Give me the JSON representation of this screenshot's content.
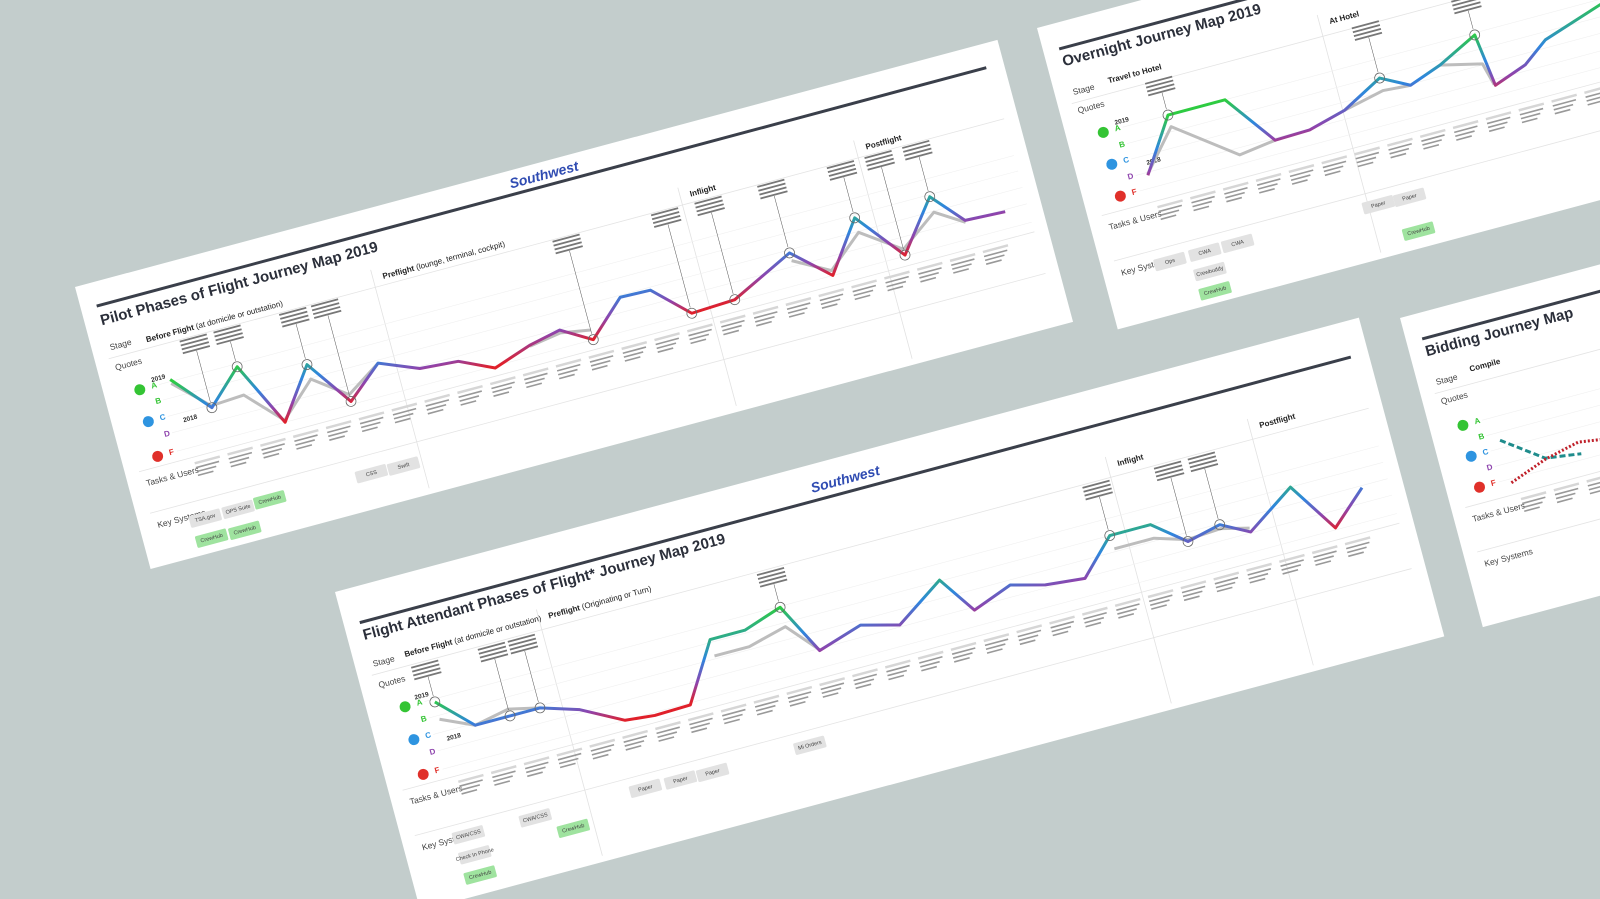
{
  "brand": "Southwest",
  "maps": [
    {
      "title": "Pilot Phases of Flight Journey Map 2019",
      "stages": [
        {
          "name": "Before Flight",
          "note": "(at domicile or outstation)"
        },
        {
          "name": "Preflight",
          "note": "(lounge, terminal, cockpit)"
        },
        {
          "name": "Inflight"
        },
        {
          "name": "Postflight"
        }
      ],
      "rows": [
        "Stage",
        "Quotes",
        "Tasks & Users",
        "Key Systems"
      ],
      "grades": [
        "A",
        "B",
        "C",
        "D",
        "F"
      ],
      "years": [
        "2019",
        "2018"
      ],
      "systems": [
        {
          "name": "TSA.gov",
          "color": "#e2e2e2"
        },
        {
          "name": "OPS Suite",
          "color": "#e2e2e2"
        },
        {
          "name": "CrewHub",
          "color": "#9fe39f"
        },
        {
          "name": "CrewHub",
          "color": "#9fe39f"
        },
        {
          "name": "CrewHub",
          "color": "#9fe39f"
        },
        {
          "name": "CSS",
          "color": "#e2e2e2"
        },
        {
          "name": "Swift",
          "color": "#e2e2e2"
        }
      ]
    },
    {
      "title": "Flight Attendant Phases of Flight* Journey Map 2019",
      "stages": [
        {
          "name": "Before Flight",
          "note": "(at domicile or outstation)"
        },
        {
          "name": "Preflight",
          "note": "(Originating or Turn)"
        },
        {
          "name": "Inflight"
        },
        {
          "name": "Postflight"
        }
      ],
      "rows": [
        "Stage",
        "Quotes",
        "Tasks & Users",
        "Key Systems"
      ],
      "grades": [
        "A",
        "B",
        "C",
        "D",
        "F"
      ],
      "years": [
        "2019",
        "2018"
      ],
      "systems": [
        {
          "name": "CWA/CSS",
          "color": "#e2e2e2"
        },
        {
          "name": "Check In Phone",
          "color": "#e2e2e2"
        },
        {
          "name": "CrewHub",
          "color": "#9fe39f"
        },
        {
          "name": "CWA/CSS",
          "color": "#e2e2e2"
        },
        {
          "name": "CrewHub",
          "color": "#9fe39f"
        },
        {
          "name": "Paper",
          "color": "#e2e2e2"
        },
        {
          "name": "Paper",
          "color": "#e2e2e2"
        },
        {
          "name": "Paper",
          "color": "#e2e2e2"
        },
        {
          "name": "Mi Orders",
          "color": "#e2e2e2"
        }
      ]
    },
    {
      "title": "Overnight Journey Map 2019",
      "stages": [
        {
          "name": "Travel to Hotel"
        },
        {
          "name": "At Hotel"
        }
      ],
      "rows": [
        "Stage",
        "Quotes",
        "Tasks & Users",
        "Key Systems"
      ],
      "grades": [
        "A",
        "B",
        "C",
        "D",
        "F"
      ],
      "years": [
        "2019",
        "2018"
      ],
      "systems": [
        {
          "name": "Ops",
          "color": "#e2e2e2"
        },
        {
          "name": "CWA",
          "color": "#e2e2e2"
        },
        {
          "name": "CWA",
          "color": "#e2e2e2"
        },
        {
          "name": "Crewbuddy",
          "color": "#e2e2e2"
        },
        {
          "name": "CrewHub",
          "color": "#9fe39f"
        },
        {
          "name": "Paper",
          "color": "#e2e2e2"
        },
        {
          "name": "Paper",
          "color": "#e2e2e2"
        },
        {
          "name": "CrewHub",
          "color": "#9fe39f"
        }
      ]
    },
    {
      "title": "Bidding Journey Map",
      "stages": [
        {
          "name": "Compile"
        }
      ],
      "rows": [
        "Stage",
        "Quotes",
        "Tasks & Users",
        "Key Systems"
      ],
      "grades": [
        "A",
        "B",
        "C",
        "D",
        "F"
      ]
    }
  ]
}
